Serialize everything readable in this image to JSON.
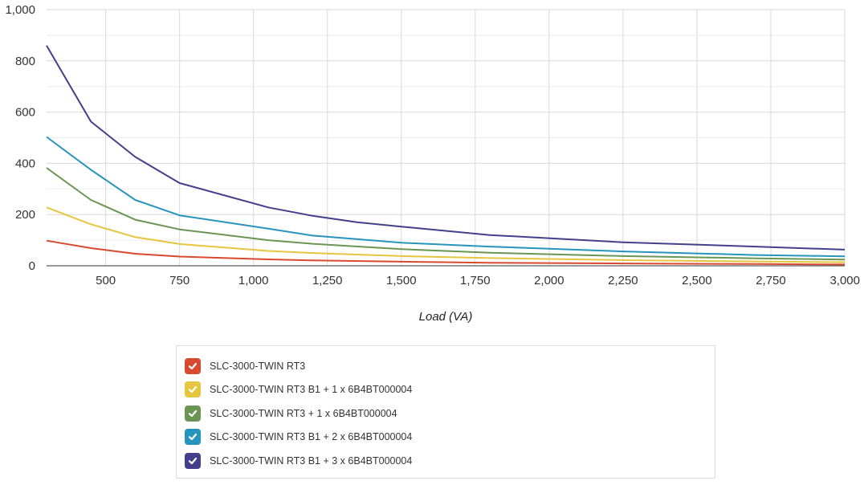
{
  "chart_data": {
    "type": "line",
    "title": "",
    "xlabel": "Load (VA)",
    "ylabel": "",
    "xlim": [
      300,
      3000
    ],
    "ylim": [
      0,
      1000
    ],
    "grid": true,
    "legend_position": "bottom",
    "x_ticks": [
      500,
      750,
      1000,
      1250,
      1500,
      1750,
      2000,
      2250,
      2500,
      2750,
      3000
    ],
    "x_tick_labels": [
      "500",
      "750",
      "1,000",
      "1,250",
      "1,500",
      "1,750",
      "2,000",
      "2,250",
      "2,500",
      "2,750",
      "3,000"
    ],
    "y_ticks": [
      0,
      200,
      400,
      600,
      800,
      1000
    ],
    "y_tick_labels": [
      "0",
      "200",
      "400",
      "600",
      "800",
      "1,000"
    ],
    "series": [
      {
        "name": "SLC-3000-TWIN RT3",
        "color": "#d84a2f",
        "points": [
          [
            300,
            98
          ],
          [
            450,
            69
          ],
          [
            600,
            47
          ],
          [
            750,
            36
          ],
          [
            1050,
            25
          ],
          [
            1200,
            21
          ],
          [
            1500,
            16
          ],
          [
            1800,
            12
          ],
          [
            2250,
            9
          ],
          [
            2700,
            7
          ],
          [
            3000,
            5
          ]
        ]
      },
      {
        "name": "SLC-3000-TWIN RT3 B1 + 1 x 6B4BT000004",
        "color": "#e6c53f",
        "points": [
          [
            300,
            228
          ],
          [
            450,
            162
          ],
          [
            600,
            112
          ],
          [
            750,
            85
          ],
          [
            1050,
            58
          ],
          [
            1200,
            50
          ],
          [
            1500,
            38
          ],
          [
            1800,
            30
          ],
          [
            2250,
            22
          ],
          [
            2700,
            17
          ],
          [
            3000,
            14
          ]
        ]
      },
      {
        "name": "SLC-3000-TWIN RT3 + 1 x 6B4BT000004",
        "color": "#6b9552",
        "points": [
          [
            300,
            382
          ],
          [
            450,
            257
          ],
          [
            600,
            180
          ],
          [
            750,
            142
          ],
          [
            1050,
            100
          ],
          [
            1200,
            86
          ],
          [
            1500,
            65
          ],
          [
            1800,
            51
          ],
          [
            2250,
            38
          ],
          [
            2700,
            29
          ],
          [
            3000,
            24
          ]
        ]
      },
      {
        "name": "SLC-3000-TWIN RT3 B1 + 2 x 6B4BT000004",
        "color": "#2694bd",
        "points": [
          [
            300,
            503
          ],
          [
            450,
            375
          ],
          [
            600,
            257
          ],
          [
            750,
            197
          ],
          [
            1050,
            145
          ],
          [
            1200,
            118
          ],
          [
            1500,
            90
          ],
          [
            1800,
            75
          ],
          [
            2250,
            56
          ],
          [
            2700,
            42
          ],
          [
            3000,
            37
          ]
        ]
      },
      {
        "name": "SLC-3000-TWIN RT3 B1 + 3 x 6B4BT000004",
        "color": "#443f8a",
        "points": [
          [
            300,
            860
          ],
          [
            450,
            563
          ],
          [
            600,
            425
          ],
          [
            750,
            323
          ],
          [
            1050,
            228
          ],
          [
            1200,
            195
          ],
          [
            1350,
            170
          ],
          [
            1500,
            153
          ],
          [
            1800,
            120
          ],
          [
            2250,
            92
          ],
          [
            2700,
            75
          ],
          [
            3000,
            63
          ]
        ]
      }
    ]
  }
}
